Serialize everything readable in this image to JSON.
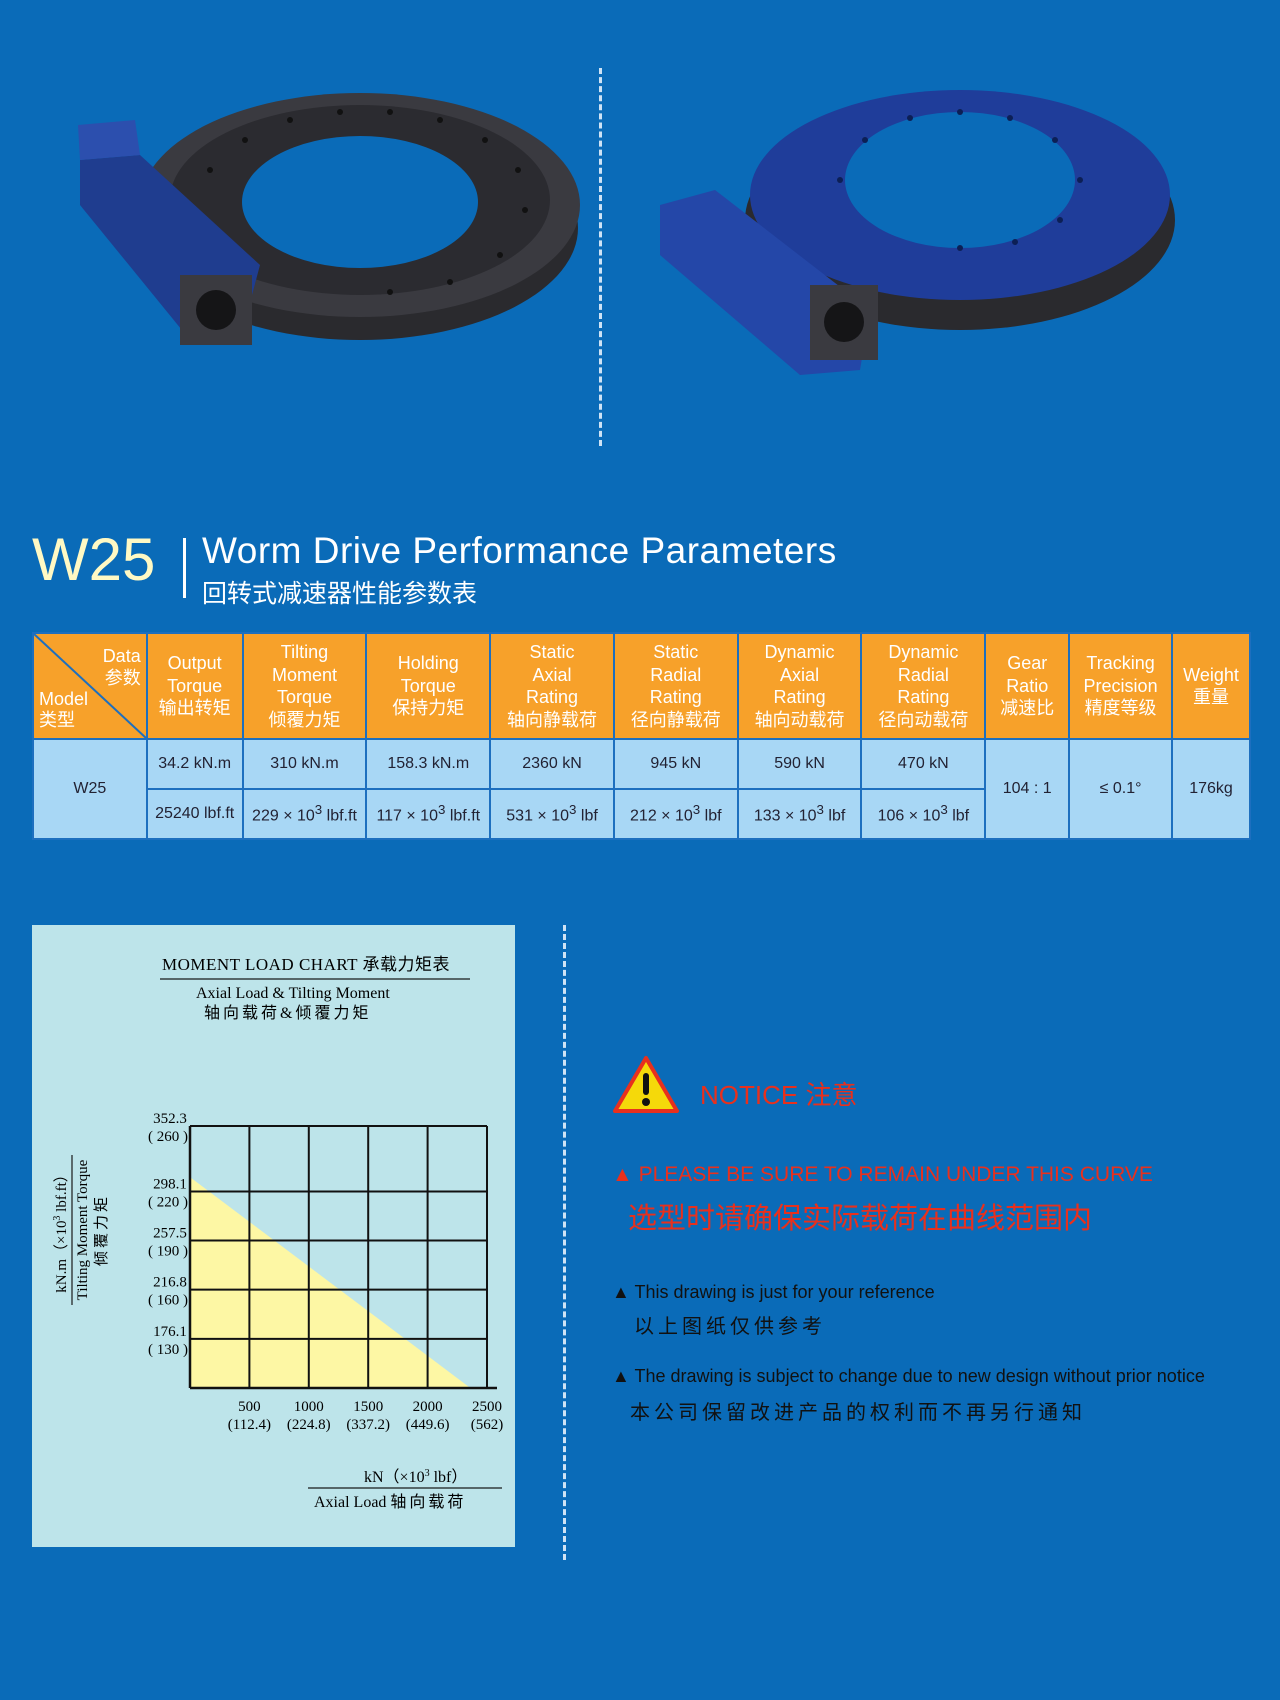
{
  "heading": {
    "model_code": "W25",
    "title_en": "Worm Drive Performance Parameters",
    "title_zh": "回转式减速器性能参数表"
  },
  "table": {
    "corner": {
      "data_en": "Data",
      "data_zh": "参数",
      "model_en": "Model",
      "model_zh": "类型"
    },
    "columns": [
      {
        "en": [
          "Output",
          "Torque"
        ],
        "zh": "输出转矩"
      },
      {
        "en": [
          "Tilting",
          "Moment",
          "Torque"
        ],
        "zh": "倾覆力矩"
      },
      {
        "en": [
          "Holding",
          "Torque"
        ],
        "zh": "保持力矩"
      },
      {
        "en": [
          "Static",
          "Axial",
          "Rating"
        ],
        "zh": "轴向静载荷"
      },
      {
        "en": [
          "Static",
          "Radial",
          "Rating"
        ],
        "zh": "径向静载荷"
      },
      {
        "en": [
          "Dynamic",
          "Axial",
          "Rating"
        ],
        "zh": "轴向动载荷"
      },
      {
        "en": [
          "Dynamic",
          "Radial",
          "Rating"
        ],
        "zh": "径向动载荷"
      },
      {
        "en": [
          "Gear",
          "Ratio"
        ],
        "zh": "减速比"
      },
      {
        "en": [
          "Tracking",
          "Precision"
        ],
        "zh": "精度等级"
      },
      {
        "en": [
          "Weight"
        ],
        "zh": "重量"
      }
    ],
    "row": {
      "model": "W25",
      "metric": [
        "34.2 kN.m",
        "310 kN.m",
        "158.3 kN.m",
        "2360 kN",
        "945 kN",
        "590 kN",
        "470 kN"
      ],
      "imperial": [
        {
          "main": "25240 lbf.ft",
          "exp": "",
          "unit": ""
        },
        {
          "main": "229 × 10",
          "exp": "3",
          "unit": " lbf.ft"
        },
        {
          "main": "117 × 10",
          "exp": "3",
          "unit": " lbf.ft"
        },
        {
          "main": "531 × 10",
          "exp": "3",
          "unit": " lbf"
        },
        {
          "main": "212 × 10",
          "exp": "3",
          "unit": " lbf"
        },
        {
          "main": "133 × 10",
          "exp": "3",
          "unit": " lbf"
        },
        {
          "main": "106 × 10",
          "exp": "3",
          "unit": " lbf"
        }
      ],
      "gear_ratio": "104 : 1",
      "tracking_precision": "≤ 0.1°",
      "weight": "176kg"
    }
  },
  "chart_data": {
    "type": "area",
    "title": "MOMENT LOAD CHART 承载力矩表",
    "subtitle_en": "Axial Load & Tilting Moment",
    "subtitle_zh": "轴向载荷&倾覆力矩",
    "ylabel_unit": "kN.m（×10",
    "ylabel_unit_exp": "3",
    "ylabel_unit_tail": " lbf.ft）",
    "ylabel_en": "Tilting Moment Torque",
    "ylabel_zh": "倾覆力矩",
    "xlabel_unit": "kN（×10",
    "xlabel_unit_exp": "3",
    "xlabel_unit_tail": " lbf）",
    "xlabel_en": "Axial Load",
    "xlabel_zh": "轴向载荷",
    "x_ticks": [
      {
        "value": 500,
        "label": "500",
        "sub": "(112.4)"
      },
      {
        "value": 1000,
        "label": "1000",
        "sub": "(224.8)"
      },
      {
        "value": 1500,
        "label": "1500",
        "sub": "(337.2)"
      },
      {
        "value": 2000,
        "label": "2000",
        "sub": "(449.6)"
      },
      {
        "value": 2500,
        "label": "2500",
        "sub": "(562)"
      }
    ],
    "y_ticks": [
      {
        "value": 176.1,
        "label": "176.1",
        "sub": "( 130 )"
      },
      {
        "value": 216.8,
        "label": "216.8",
        "sub": "( 160 )"
      },
      {
        "value": 257.5,
        "label": "257.5",
        "sub": "( 190 )"
      },
      {
        "value": 298.1,
        "label": "298.1",
        "sub": "( 220 )"
      },
      {
        "value": 352.3,
        "label": "352.3",
        "sub": "( 260 )"
      }
    ],
    "xlim": [
      0,
      2500
    ],
    "ylim": [
      135.4,
      352.3
    ],
    "curve": {
      "x": [
        0,
        2360
      ],
      "y": [
        310,
        135.4
      ]
    },
    "fill_color": "#fdf7a4",
    "grid": true
  },
  "notice": {
    "title": "NOTICE 注意",
    "warning_en": "▲ PLEASE BE SURE TO REMAIN UNDER THIS CURVE",
    "warning_zh": "选型时请确保实际载荷在曲线范围内",
    "note1_en": "▲ This drawing is just for your reference",
    "note1_zh": "以上图纸仅供参考",
    "note2_en": "▲ The drawing is subject to change due to new design without prior notice",
    "note2_zh": "本公司保留改进产品的权利而不再另行通知",
    "accent": "#e8301d"
  }
}
